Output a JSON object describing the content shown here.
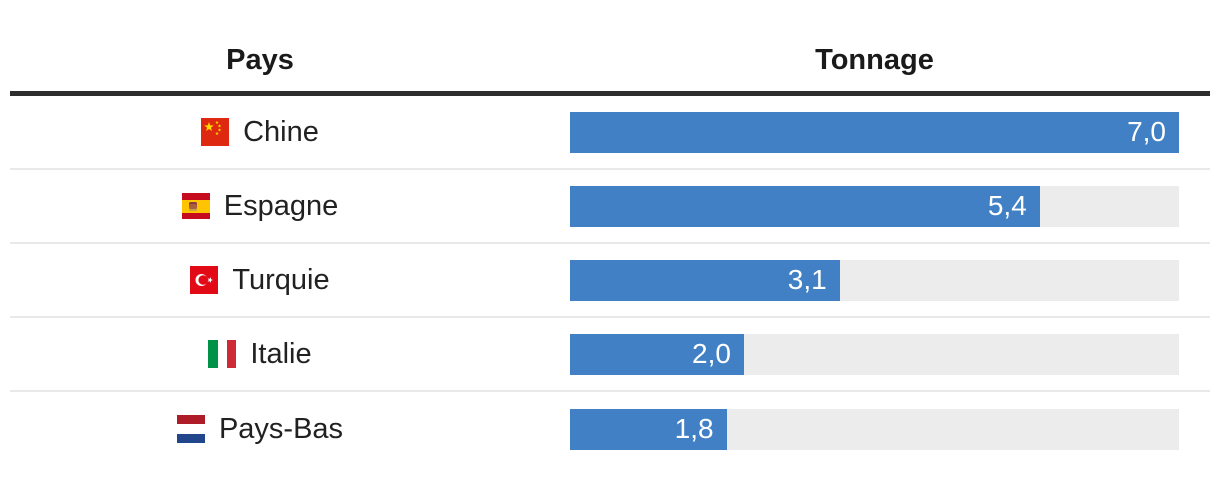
{
  "table": {
    "headers": {
      "pays": "Pays",
      "tonnage": "Tonnage"
    },
    "rows": [
      {
        "country": "Chine",
        "flag_icon": "flag-chine-icon",
        "value": "7,0",
        "value_num": 7.0,
        "pct": 100
      },
      {
        "country": "Espagne",
        "flag_icon": "flag-espagne-icon",
        "value": "5,4",
        "value_num": 5.4,
        "pct": 77.14
      },
      {
        "country": "Turquie",
        "flag_icon": "flag-turquie-icon",
        "value": "3,1",
        "value_num": 3.1,
        "pct": 44.29
      },
      {
        "country": "Italie",
        "flag_icon": "flag-italie-icon",
        "value": "2,0",
        "value_num": 2.0,
        "pct": 28.57
      },
      {
        "country": "Pays-Bas",
        "flag_icon": "flag-paysbas-icon",
        "value": "1,8",
        "value_num": 1.8,
        "pct": 25.71
      }
    ]
  },
  "colors": {
    "bar": "#4180c4",
    "bar_track": "#ececec",
    "header_border": "#2d2d2d",
    "row_separator": "#e9e9e9",
    "value_text": "#ffffff",
    "label_text": "#212121"
  },
  "chart_data": {
    "type": "bar",
    "orientation": "horizontal",
    "title": "",
    "xlabel": "Tonnage",
    "ylabel": "Pays",
    "categories": [
      "Chine",
      "Espagne",
      "Turquie",
      "Italie",
      "Pays-Bas"
    ],
    "values": [
      7.0,
      5.4,
      3.1,
      2.0,
      1.8
    ],
    "value_labels": [
      "7,0",
      "5,4",
      "3,1",
      "2,0",
      "1,8"
    ],
    "xlim": [
      0,
      7
    ],
    "grid": false,
    "legend": false,
    "decimal_separator": ","
  }
}
